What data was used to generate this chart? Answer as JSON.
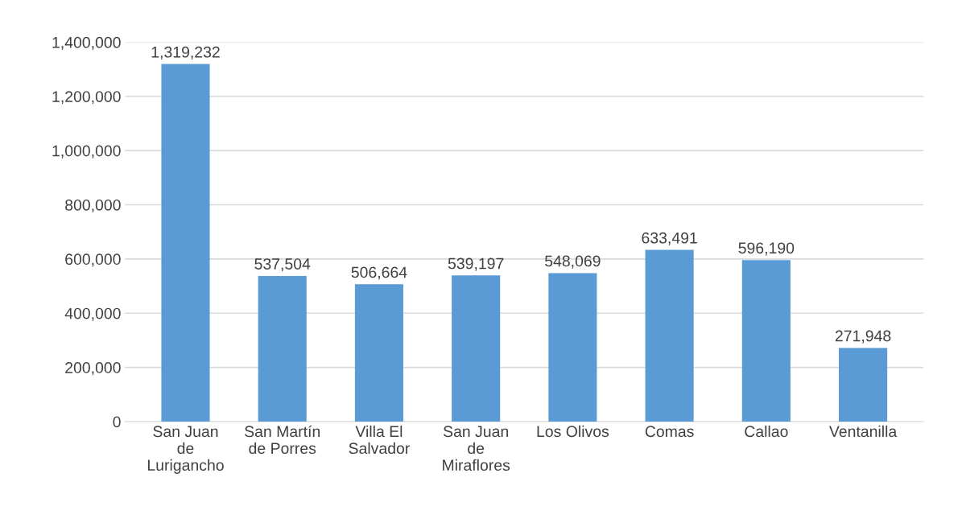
{
  "chart_data": {
    "type": "bar",
    "categories": [
      "San Juan\nde\nLurigancho",
      "San Martín\nde Porres",
      "Villa El\nSalvador",
      "San Juan\nde\nMiraflores",
      "Los Olivos",
      "Comas",
      "Callao",
      "Ventanilla"
    ],
    "values": [
      1319232,
      537504,
      506664,
      539197,
      548069,
      633491,
      596190,
      271948
    ],
    "color": "#5b9bd5",
    "ylim": [
      0,
      1400000
    ],
    "yticks": [
      {
        "value": 0,
        "label": "0"
      },
      {
        "value": 200000,
        "label": "200,000"
      },
      {
        "value": 400000,
        "label": "400,000"
      },
      {
        "value": 600000,
        "label": "600,000"
      },
      {
        "value": 800000,
        "label": "800,000"
      },
      {
        "value": 1000000,
        "label": "1,000,000"
      },
      {
        "value": 1200000,
        "label": "1,200,000"
      },
      {
        "value": 1400000,
        "label": "1,400,000"
      }
    ],
    "grid": "y",
    "value_labels": [
      "1,319,232",
      "537,504",
      "506,664",
      "539,197",
      "548,069",
      "633,491",
      "596,190",
      "271,948"
    ]
  }
}
